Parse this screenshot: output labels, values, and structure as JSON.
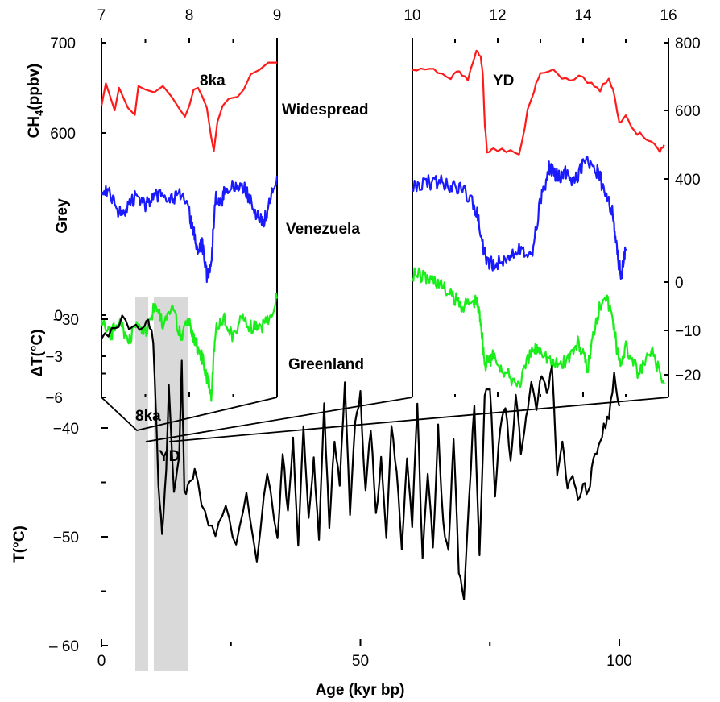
{
  "colors": {
    "widespread": "#ff1a1a",
    "venezuela": "#1a1aff",
    "greenland": "#1aee1a",
    "temperature": "#000000",
    "shade": "#d9d9d9"
  },
  "chart_data": [
    {
      "type": "line",
      "panel": "left inset (Holocene 8ka event)",
      "x_ticks": [
        "7",
        "8",
        "9"
      ],
      "xlim": [
        7,
        9
      ],
      "left_axis": {
        "ch4_ticks": [
          "700",
          "600"
        ],
        "ch4_label": "CH4(ppbv)",
        "ch4_label_main": "CH",
        "ch4_label_sub": "4",
        "ch4_label_tail": "(ppbv)",
        "ch4_ylim": [
          560,
          700
        ],
        "grey_label": "Grey",
        "dt_ticks": [
          "0",
          "-3",
          "-6"
        ],
        "dt_label": "ΔT(°C)",
        "dt_ylim": [
          -6,
          0
        ]
      },
      "event_label": "8ka",
      "series": [
        {
          "name": "Widespread",
          "x": [
            7.0,
            7.05,
            7.1,
            7.15,
            7.2,
            7.3,
            7.38,
            7.42,
            7.5,
            7.6,
            7.7,
            7.8,
            7.9,
            7.95,
            8.0,
            8.05,
            8.1,
            8.15,
            8.2,
            8.25,
            8.28,
            8.32,
            8.38,
            8.45,
            8.55,
            8.62,
            8.7,
            8.8,
            8.9,
            9.0
          ],
          "y": [
            630,
            655,
            640,
            625,
            650,
            628,
            620,
            652,
            648,
            645,
            652,
            640,
            625,
            618,
            630,
            648,
            650,
            640,
            628,
            595,
            580,
            612,
            630,
            638,
            640,
            648,
            665,
            670,
            678,
            678
          ]
        },
        {
          "name": "Venezuela",
          "x": [
            7.0,
            7.1,
            7.2,
            7.3,
            7.4,
            7.5,
            7.6,
            7.7,
            7.8,
            7.9,
            8.0,
            8.05,
            8.1,
            8.15,
            8.2,
            8.25,
            8.3,
            8.35,
            8.4,
            8.5,
            8.6,
            8.7,
            8.8,
            8.85,
            8.9,
            9.0
          ],
          "y": [
            0.75,
            0.72,
            0.55,
            0.6,
            0.7,
            0.62,
            0.68,
            0.72,
            0.66,
            0.7,
            0.55,
            0.4,
            0.25,
            0.3,
            0.05,
            0.15,
            0.7,
            0.6,
            0.72,
            0.76,
            0.78,
            0.65,
            0.5,
            0.48,
            0.6,
            0.85
          ]
        },
        {
          "name": "Greenland",
          "x": [
            7.0,
            7.1,
            7.2,
            7.3,
            7.4,
            7.5,
            7.6,
            7.7,
            7.8,
            7.9,
            8.0,
            8.05,
            8.1,
            8.15,
            8.2,
            8.25,
            8.3,
            8.4,
            8.5,
            8.6,
            8.7,
            8.8,
            8.9,
            9.0
          ],
          "y": [
            -0.5,
            -1.5,
            -0.3,
            -2.0,
            -0.8,
            -1.2,
            0.5,
            -0.5,
            0.8,
            -1.5,
            -0.5,
            -1.8,
            -2.5,
            -3.2,
            -4.5,
            -5.8,
            -1.0,
            -0.3,
            -1.5,
            -0.2,
            -0.8,
            -1.0,
            -0.2,
            1.2
          ]
        }
      ],
      "series_labels": [
        "Widespread",
        "Venezuela",
        "Greenland"
      ]
    },
    {
      "type": "line",
      "panel": "right inset (Younger Dryas)",
      "x_ticks": [
        "10",
        "12",
        "14",
        "16"
      ],
      "xlim": [
        10,
        16
      ],
      "right_axis": {
        "ticks": [
          "800",
          "600",
          "400",
          "0",
          "-10",
          "-20"
        ],
        "ch4_ylim": [
          420,
          800
        ]
      },
      "event_label": "YD",
      "series": [
        {
          "name": "Widespread",
          "x": [
            10.0,
            10.3,
            10.6,
            10.9,
            11.1,
            11.3,
            11.5,
            11.6,
            11.65,
            11.7,
            11.75,
            11.9,
            12.2,
            12.5,
            12.7,
            12.85,
            13.0,
            13.3,
            13.6,
            13.9,
            14.2,
            14.4,
            14.6,
            14.7,
            14.85,
            15.0,
            15.2,
            15.4,
            15.6,
            15.8,
            15.9
          ],
          "y": [
            720,
            720,
            715,
            700,
            715,
            690,
            780,
            760,
            700,
            560,
            480,
            490,
            485,
            470,
            600,
            660,
            715,
            720,
            690,
            700,
            680,
            660,
            700,
            660,
            560,
            580,
            540,
            525,
            515,
            485,
            500
          ]
        },
        {
          "name": "Venezuela",
          "x": [
            10.0,
            10.3,
            10.6,
            10.9,
            11.2,
            11.5,
            11.7,
            11.9,
            12.2,
            12.5,
            12.8,
            13.0,
            13.2,
            13.4,
            13.6,
            13.8,
            14.0,
            14.3,
            14.5,
            14.7,
            14.8,
            14.9,
            15.0
          ],
          "y": [
            0.72,
            0.75,
            0.76,
            0.72,
            0.7,
            0.55,
            0.2,
            0.12,
            0.2,
            0.25,
            0.22,
            0.6,
            0.85,
            0.8,
            0.82,
            0.75,
            0.9,
            0.85,
            0.7,
            0.5,
            0.2,
            0.05,
            0.25
          ]
        },
        {
          "name": "Greenland",
          "x": [
            10.0,
            10.3,
            10.6,
            10.9,
            11.2,
            11.5,
            11.6,
            11.7,
            11.9,
            12.2,
            12.5,
            12.8,
            13.0,
            13.3,
            13.6,
            13.9,
            14.1,
            14.3,
            14.5,
            14.7,
            14.85,
            15.0,
            15.3,
            15.6,
            15.9
          ],
          "y": [
            2,
            1,
            0,
            -3,
            -5,
            -4,
            -8,
            -18,
            -16,
            -20,
            -22,
            -15,
            -14,
            -18,
            -17,
            -13,
            -19,
            -8,
            -2,
            -8,
            -18,
            -14,
            -20,
            -15,
            -22
          ]
        }
      ]
    },
    {
      "type": "line",
      "panel": "bottom (full glacial record)",
      "xlabel": "Age (kyr bp)",
      "ylabel": "T(°C)",
      "x_ticks": [
        "0",
        "50",
        "100"
      ],
      "y_ticks": [
        "-30",
        "-40",
        "-50",
        "– 60"
      ],
      "xlim": [
        0,
        110
      ],
      "ylim": [
        -60,
        -28
      ],
      "shaded_regions": [
        [
          7,
          9
        ],
        [
          10,
          16
        ]
      ],
      "shade_labels": [
        "8ka",
        "YD"
      ],
      "series": [
        {
          "name": "Greenland T",
          "x": [
            0,
            2,
            4,
            6,
            8,
            9,
            10,
            11,
            11.7,
            12.5,
            13,
            14,
            15,
            15.5,
            16,
            17,
            18,
            20,
            22,
            24,
            26,
            28,
            30,
            32,
            34,
            35,
            36,
            37,
            38,
            39,
            40,
            41,
            42,
            43,
            44,
            45,
            46,
            47,
            48,
            49,
            50,
            51,
            52,
            53,
            54,
            55,
            56,
            57,
            58,
            59,
            60,
            61,
            62,
            63,
            64,
            65,
            66,
            67,
            68,
            69,
            70,
            71,
            72,
            73,
            74,
            75,
            76,
            77,
            78,
            79,
            80,
            81,
            82,
            83,
            84,
            85,
            86,
            87,
            88,
            89,
            90,
            91,
            92,
            93,
            94,
            95,
            96,
            97,
            98,
            99,
            100
          ],
          "y": [
            -32,
            -31,
            -30,
            -31,
            -30.5,
            -30,
            -32,
            -45,
            -50,
            -44,
            -36,
            -46,
            -43,
            -34,
            -46,
            -45,
            -44,
            -48,
            -50,
            -47,
            -51,
            -46,
            -52,
            -44,
            -50,
            -42,
            -48,
            -41,
            -51,
            -40,
            -48,
            -43,
            -50,
            -38,
            -49,
            -41,
            -45,
            -36,
            -48,
            -39,
            -37,
            -46,
            -40,
            -48,
            -43,
            -50,
            -40,
            -44,
            -51,
            -43,
            -49,
            -38,
            -52,
            -44,
            -51,
            -40,
            -49,
            -51,
            -41,
            -53,
            -56,
            -46,
            -38,
            -52,
            -37,
            -36,
            -46,
            -40,
            -38,
            -43,
            -37,
            -42,
            -39,
            -36,
            -38,
            -35,
            -37,
            -34,
            -44,
            -41,
            -46,
            -44,
            -47,
            -45,
            -46,
            -43,
            -42,
            -40,
            -39,
            -35,
            -38
          ]
        }
      ]
    }
  ]
}
